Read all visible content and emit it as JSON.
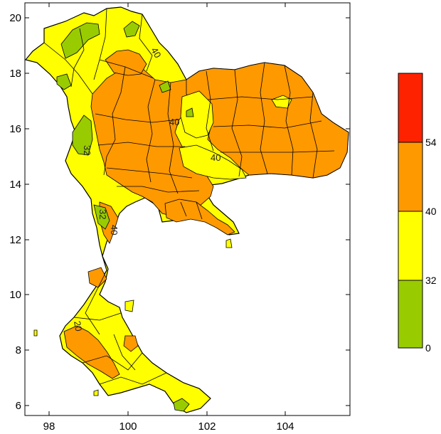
{
  "map": {
    "x_ticks": [
      "98",
      "100",
      "102",
      "104"
    ],
    "y_ticks": [
      "6",
      "8",
      "10",
      "12",
      "14",
      "16",
      "18",
      "20"
    ],
    "contour_labels": [
      "40",
      "40",
      "40",
      "32",
      "32",
      "40",
      "20"
    ]
  },
  "legend": {
    "bands": [
      {
        "from": 0,
        "to": 32,
        "color": "#99cc00"
      },
      {
        "from": 32,
        "to": 40,
        "color": "#ffff00"
      },
      {
        "from": 40,
        "to": 54,
        "color": "#ff9900"
      },
      {
        "from": 54,
        "to": null,
        "color": "#ff2200"
      }
    ],
    "labels": [
      "0",
      "32",
      "40",
      "54"
    ]
  },
  "colors": {
    "green": "#99cc00",
    "yellow": "#ffff00",
    "orange": "#ff9900",
    "red": "#ff2200",
    "frame": "#000000"
  }
}
